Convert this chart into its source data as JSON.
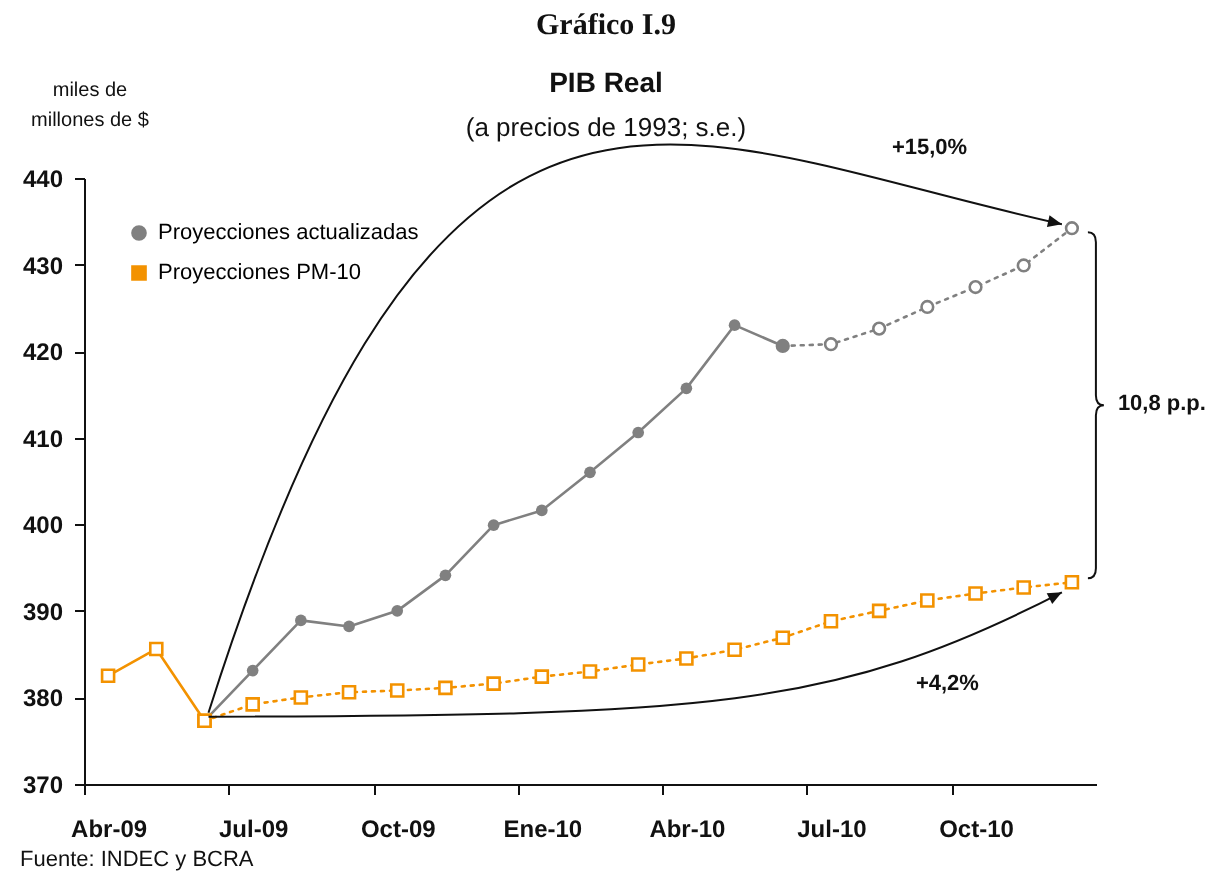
{
  "chart_data": {
    "type": "line",
    "title": "PIB Real",
    "subtitle": "(a precios de 1993; s.e.)",
    "ylabel": "miles de millones de $",
    "annotations": [
      "Gráfico I.9",
      "+15,0%",
      "+4,2%",
      "10,8 p.p.",
      "Fuente: INDEC y BCRA"
    ],
    "categories": [
      "Abr-09",
      null,
      null,
      "Jul-09",
      null,
      null,
      "Oct-09",
      null,
      null,
      "Ene-10",
      null,
      null,
      "Abr-10",
      null,
      null,
      "Jul-10",
      null,
      null,
      "Oct-10",
      null,
      null
    ],
    "series": [
      {
        "color": "#808080",
        "marker": "circle",
        "line_style": "dotted",
        "values": [
          null,
          null,
          null,
          null,
          null,
          null,
          null,
          null,
          null,
          null,
          null,
          null,
          null,
          null,
          420.6,
          420.8,
          422.6,
          425.1,
          427.4,
          429.9,
          434.2
        ]
      },
      {
        "name": "Proyecciones actualizadas",
        "color": "#808080",
        "marker": "circle",
        "line_style": "solid",
        "values": [
          null,
          null,
          377.3,
          383.1,
          388.9,
          388.2,
          390.0,
          394.1,
          399.9,
          401.6,
          406.0,
          410.6,
          415.7,
          423.0,
          420.6,
          null,
          null,
          null,
          null,
          null,
          null
        ]
      },
      {
        "color": "#f39200",
        "marker": "square",
        "line_style": "solid",
        "values": [
          382.5,
          385.6,
          377.3,
          null,
          null,
          null,
          null,
          null,
          null,
          null,
          null,
          null,
          null,
          null,
          null,
          null,
          null,
          null,
          null,
          null,
          null
        ]
      },
      {
        "name": "Proyecciones PM-10",
        "color": "#f39200",
        "marker": "square",
        "line_style": "dotted",
        "values": [
          null,
          null,
          377.3,
          379.2,
          380.0,
          380.6,
          380.8,
          381.1,
          381.6,
          382.4,
          383.0,
          383.8,
          384.5,
          385.5,
          386.9,
          388.8,
          390.0,
          391.2,
          392.0,
          392.7,
          393.3
        ]
      }
    ],
    "ylim": [
      370,
      440
    ],
    "yticks": [
      370,
      380,
      390,
      400,
      410,
      420,
      430,
      440
    ],
    "grid": false,
    "legend": "top left"
  }
}
